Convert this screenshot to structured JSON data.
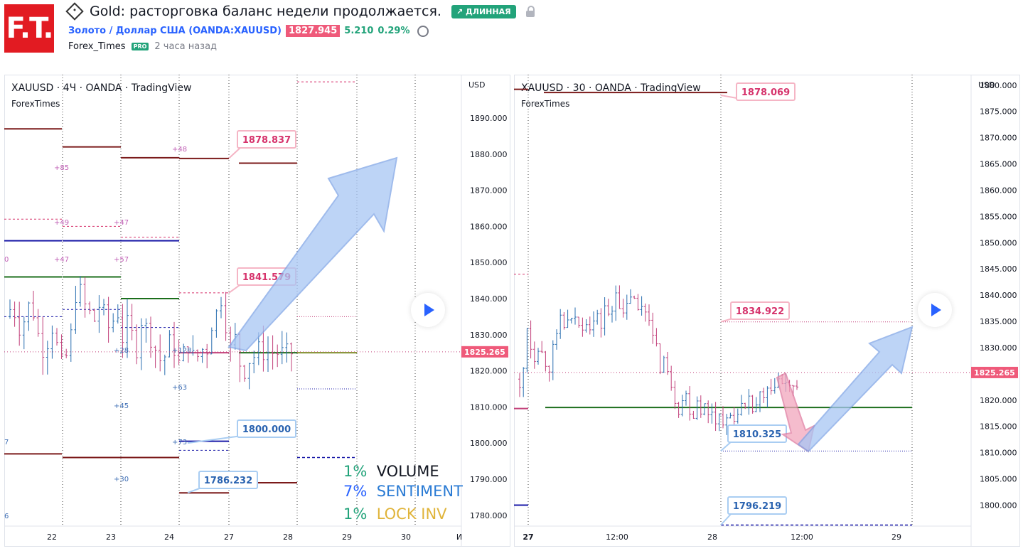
{
  "header": {
    "logo": "F.T.",
    "title": "Gold: расторговка баланс недели продолжается.",
    "badge": "↗ ДЛИННАЯ",
    "symbol_link": "Золото / Доллар США",
    "symbol_code": "(OANDA:XAUUSD)",
    "price": "1827.945",
    "change": "5.210",
    "change_pct": "0.29%",
    "author": "Forex_Times",
    "pro": "PRO",
    "time_ago": "2 часа назад"
  },
  "colors": {
    "accent": "#2962ff",
    "up": "#22a37a",
    "down": "#ef5a7a",
    "level_dark_red": "#7b1a1a",
    "level_blue": "#1a1aa8",
    "level_green": "#1b6e1b"
  },
  "indicators": [
    {
      "pct": "1%",
      "name": "VOLUME",
      "pct_color": "#22a37a",
      "name_color": "#131722"
    },
    {
      "pct": "7%",
      "name": "SENTIMENT",
      "pct_color": "#2962ff",
      "name_color": "#2a7bd4"
    },
    {
      "pct": "1%",
      "name": "LOCK INV",
      "pct_color": "#22a37a",
      "name_color": "#e0b43a"
    }
  ],
  "chart_data": [
    {
      "type": "candlestick",
      "title": "XAUUSD · 4Ч · OANDA · TradingView",
      "subtitle": "ForexTimes",
      "currency": "USD",
      "x_ticks": [
        "22",
        "23",
        "24",
        "27",
        "28",
        "29",
        "30",
        "И"
      ],
      "y_ticks": [
        1780,
        1790,
        1800,
        1810,
        1820,
        1830,
        1840,
        1850,
        1860,
        1870,
        1880,
        1890
      ],
      "ylim": [
        1777,
        1902
      ],
      "current_price": "1825.265",
      "annotations": [
        {
          "label": "1878.837",
          "value": 1878.837,
          "kind": "resistance"
        },
        {
          "label": "1841.579",
          "value": 1841.579,
          "kind": "resistance"
        },
        {
          "label": "1800.000",
          "value": 1800.0,
          "kind": "support"
        },
        {
          "label": "1786.232",
          "value": 1786.232,
          "kind": "support"
        }
      ],
      "small_labels": [
        "+48",
        "+85",
        "+49",
        "+47",
        "+47",
        "+57",
        "+28",
        "+128",
        "+63",
        "+45",
        "+73",
        "+30",
        "0",
        "7",
        "6"
      ],
      "forecast": "up"
    },
    {
      "type": "candlestick",
      "title": "XAUUSD · 30 · OANDA · TradingView",
      "subtitle": "ForexTimes",
      "currency": "USD",
      "x_ticks": [
        "27",
        "12:00",
        "28",
        "12:00",
        "29"
      ],
      "y_ticks": [
        1800,
        1805,
        1810,
        1815,
        1820,
        1825,
        1830,
        1835,
        1840,
        1845,
        1850,
        1855,
        1860,
        1865,
        1870,
        1875,
        1880
      ],
      "ylim": [
        1796,
        1882
      ],
      "current_price": "1825.265",
      "annotations": [
        {
          "label": "1878.069",
          "value": 1878.069,
          "kind": "resistance"
        },
        {
          "label": "1834.922",
          "value": 1834.922,
          "kind": "resistance"
        },
        {
          "label": "1810.325",
          "value": 1810.325,
          "kind": "support"
        },
        {
          "label": "1796.219",
          "value": 1796.219,
          "kind": "support"
        }
      ],
      "forecast": "down-then-up"
    }
  ]
}
